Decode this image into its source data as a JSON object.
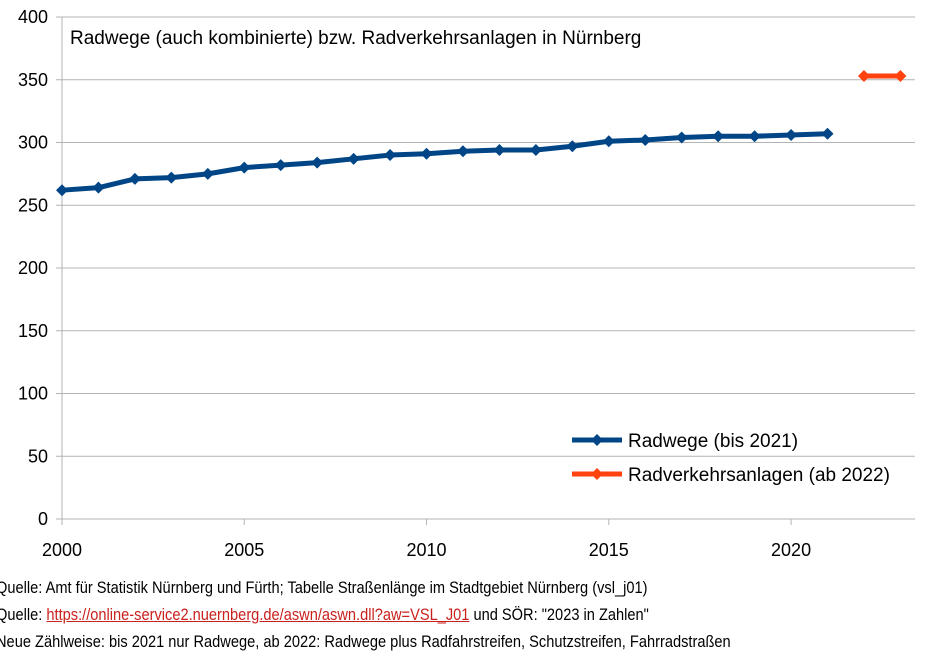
{
  "chart_data": {
    "type": "line",
    "title": "Radwege (auch kombinierte) bzw. Radverkehrsanlagen in Nürnberg",
    "xlabel": "",
    "ylabel": "",
    "xlim": [
      2000,
      2023.4
    ],
    "ylim": [
      0,
      400
    ],
    "xticks": [
      2000,
      2005,
      2010,
      2015,
      2020
    ],
    "yticks": [
      0,
      50,
      100,
      150,
      200,
      250,
      300,
      350,
      400
    ],
    "grid": "horizontal",
    "legend_position": "bottom-right",
    "series": [
      {
        "name": "Radwege (bis 2021)",
        "color": "#004586",
        "x": [
          2000,
          2001,
          2002,
          2003,
          2004,
          2005,
          2006,
          2007,
          2008,
          2009,
          2010,
          2011,
          2012,
          2013,
          2014,
          2015,
          2016,
          2017,
          2018,
          2019,
          2020,
          2021
        ],
        "values": [
          262,
          264,
          271,
          272,
          275,
          280,
          282,
          284,
          287,
          290,
          291,
          293,
          294,
          294,
          297,
          301,
          302,
          304,
          305,
          305,
          306,
          307
        ]
      },
      {
        "name": "Radverkehrsanlagen (ab 2022)",
        "color": "#ff420e",
        "x": [
          2022,
          2023
        ],
        "values": [
          353,
          353
        ]
      }
    ]
  },
  "footer": {
    "line1": "Quelle: Amt für Statistik Nürnberg und Fürth; Tabelle Straßenlänge im Stadtgebiet Nürnberg (vsl_j01)",
    "line2_prefix": "Quelle: ",
    "line2_link": "https://online-service2.nuernberg.de/aswn/aswn.dll?aw=VSL_J01",
    "line2_suffix": " und SÖR: \"2023 in Zahlen\"",
    "line3": "Neue Zählweise: bis 2021 nur Radwege, ab 2022: Radwege plus Radfahrstreifen, Schutzstreifen, Fahrradstraßen"
  }
}
